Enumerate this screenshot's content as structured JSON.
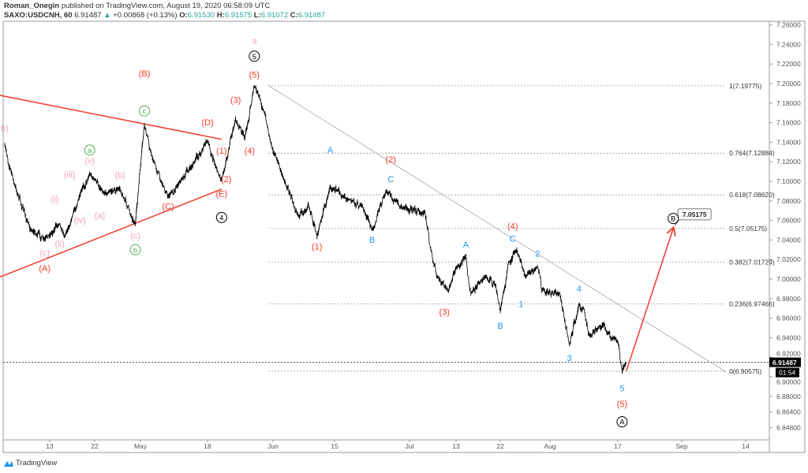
{
  "header": {
    "author": "Roman_Onegin",
    "published": "published on TradingView.com, August 19, 2020 06:58:09 UTC",
    "symbol": "SAXO:USDCNH, 60",
    "last": "6.91487",
    "change": "+0.00868 (+0.13%)",
    "o_label": "O:",
    "o": "6.91530",
    "h_label": "H:",
    "h": "6.91575",
    "l_label": "L:",
    "l": "6.91072",
    "c_label": "C:",
    "c": "6.91487"
  },
  "footer": {
    "brand": "TradingView"
  },
  "colors": {
    "price": "#000000",
    "trend": "#f23a2a",
    "pink": "#f4a3b8",
    "green": "#4caf50",
    "blue": "#2196f3",
    "red": "#f23a2a",
    "teal": "#26a69a",
    "grid": "#9598a1"
  },
  "chart_data": {
    "type": "line",
    "title": "",
    "xlabel": "",
    "ylabel": "",
    "ylim": [
      6.848,
      7.26
    ],
    "grid": false,
    "y_ticks": [
      "7.26000",
      "7.24000",
      "7.22000",
      "7.20000",
      "7.18000",
      "7.16000",
      "7.14000",
      "7.12000",
      "7.10000",
      "7.08000",
      "7.06000",
      "7.04000",
      "7.02000",
      "7.00000",
      "6.98000",
      "6.96000",
      "6.94000",
      "6.92000",
      "6.90000",
      "6.88000",
      "6.86400",
      "6.84800"
    ],
    "x_ticks": [
      {
        "date": "2020-04-13",
        "label": "13"
      },
      {
        "date": "2020-04-22",
        "label": "22"
      },
      {
        "date": "2020-05-01",
        "label": "May"
      },
      {
        "date": "2020-05-18",
        "label": "18"
      },
      {
        "date": "2020-06-01",
        "label": "Jun"
      },
      {
        "date": "2020-06-15",
        "label": "15"
      },
      {
        "date": "2020-07-01",
        "label": "Jul"
      },
      {
        "date": "2020-07-13",
        "label": "13"
      },
      {
        "date": "2020-07-22",
        "label": "22"
      },
      {
        "date": "2020-08-03",
        "label": "Aug"
      },
      {
        "date": "2020-08-17",
        "label": "17"
      },
      {
        "date": "2020-09-01",
        "label": "Sep"
      },
      {
        "date": "2020-09-14",
        "label": "14"
      }
    ],
    "series": [
      {
        "points": [
          [
            "2020-04-04",
            7.136
          ],
          [
            "2020-04-06",
            7.096
          ],
          [
            "2020-04-09",
            7.052
          ],
          [
            "2020-04-12",
            7.04
          ],
          [
            "2020-04-15",
            7.058
          ],
          [
            "2020-04-16",
            7.044
          ],
          [
            "2020-04-19",
            7.084
          ],
          [
            "2020-04-21",
            7.108
          ],
          [
            "2020-04-24",
            7.088
          ],
          [
            "2020-04-27",
            7.092
          ],
          [
            "2020-04-30",
            7.056
          ],
          [
            "2020-05-02",
            7.158
          ],
          [
            "2020-05-04",
            7.124
          ],
          [
            "2020-05-08",
            7.084
          ],
          [
            "2020-05-11",
            7.1
          ],
          [
            "2020-05-14",
            7.115
          ],
          [
            "2020-05-18",
            7.142
          ],
          [
            "2020-05-20",
            7.112
          ],
          [
            "2020-05-21",
            7.102
          ],
          [
            "2020-05-24",
            7.163
          ],
          [
            "2020-05-26",
            7.144
          ],
          [
            "2020-05-28",
            7.198
          ],
          [
            "2020-05-30",
            7.173
          ],
          [
            "2020-06-01",
            7.132
          ],
          [
            "2020-06-03",
            7.108
          ],
          [
            "2020-06-07",
            7.064
          ],
          [
            "2020-06-09",
            7.077
          ],
          [
            "2020-06-11",
            7.044
          ],
          [
            "2020-06-14",
            7.094
          ],
          [
            "2020-06-18",
            7.082
          ],
          [
            "2020-06-21",
            7.074
          ],
          [
            "2020-06-23",
            7.05
          ],
          [
            "2020-06-26",
            7.09
          ],
          [
            "2020-06-29",
            7.074
          ],
          [
            "2020-07-05",
            7.068
          ],
          [
            "2020-07-07",
            7.019
          ],
          [
            "2020-07-08",
            7.003
          ],
          [
            "2020-07-11",
            6.987
          ],
          [
            "2020-07-13",
            7.011
          ],
          [
            "2020-07-15",
            7.023
          ],
          [
            "2020-07-16",
            6.985
          ],
          [
            "2020-07-19",
            7.003
          ],
          [
            "2020-07-21",
            6.994
          ],
          [
            "2020-07-22",
            6.967
          ],
          [
            "2020-07-24",
            7.016
          ],
          [
            "2020-07-26",
            7.029
          ],
          [
            "2020-07-28",
            7.003
          ],
          [
            "2020-07-31",
            7.013
          ],
          [
            "2020-08-01",
            6.989
          ],
          [
            "2020-08-05",
            6.985
          ],
          [
            "2020-08-07",
            6.932
          ],
          [
            "2020-08-09",
            6.975
          ],
          [
            "2020-08-10",
            6.969
          ],
          [
            "2020-08-11",
            6.943
          ],
          [
            "2020-08-14",
            6.953
          ],
          [
            "2020-08-15",
            6.945
          ],
          [
            "2020-08-17",
            6.937
          ],
          [
            "2020-08-18",
            6.905
          ],
          [
            "2020-08-19",
            6.91487
          ]
        ]
      }
    ],
    "current_price": {
      "value": 6.91487,
      "label": "6.91487",
      "countdown": "01:54"
    },
    "trendlines": [
      {
        "color": "#f23a2a",
        "from": [
          "2020-04-03",
          7.188
        ],
        "to": [
          "2020-05-21",
          7.143
        ]
      },
      {
        "color": "#f23a2a",
        "from": [
          "2020-04-03",
          7.002
        ],
        "to": [
          "2020-05-21",
          7.092
        ]
      },
      {
        "color": "#9598a1",
        "from": [
          "2020-05-31",
          7.198
        ],
        "to": [
          "2020-09-10",
          6.905
        ]
      },
      {
        "color": "#f23a2a",
        "from": [
          "2020-08-19",
          6.906
        ],
        "to": [
          "2020-08-30",
          7.05175
        ],
        "arrow": true
      }
    ],
    "fib_levels": {
      "from": "2020-05-31",
      "to": "2020-09-10",
      "levels": [
        {
          "price": 7.19775,
          "label": "1(7.19775)"
        },
        {
          "price": 7.12884,
          "label": "0.764(7.12884)"
        },
        {
          "price": 7.0862,
          "label": "0.618(7.08620)"
        },
        {
          "price": 7.05175,
          "label": "0.5(7.05175)"
        },
        {
          "price": 7.01729,
          "label": "0.382(7.01729)"
        },
        {
          "price": 6.97466,
          "label": "0.236(6.97466)"
        },
        {
          "price": 6.90575,
          "label": "0(6.90575)"
        }
      ]
    },
    "target_callout": {
      "label": "7.05175"
    },
    "wave_labels": [
      {
        "text": "a",
        "color": "pink",
        "date": "2020-05-28",
        "price": 7.2435
      },
      {
        "text": "5",
        "color": "black",
        "circle": true,
        "date": "2020-05-28",
        "price": 7.228
      },
      {
        "text": "(5)",
        "color": "red",
        "date": "2020-05-28",
        "price": 7.209
      },
      {
        "text": "(3)",
        "color": "red",
        "date": "2020-05-24",
        "price": 7.183
      },
      {
        "text": "(4)",
        "color": "red",
        "date": "2020-05-27",
        "price": 7.131
      },
      {
        "text": "(1)",
        "color": "red",
        "date": "2020-05-21",
        "price": 7.131
      },
      {
        "text": "(2)",
        "color": "red",
        "date": "2020-05-22",
        "price": 7.102
      },
      {
        "text": "(E)",
        "color": "red",
        "date": "2020-05-21",
        "price": 7.087
      },
      {
        "text": "4",
        "color": "black",
        "circle": true,
        "date": "2020-05-21",
        "price": 7.063
      },
      {
        "text": "(D)",
        "color": "red",
        "date": "2020-05-18",
        "price": 7.16
      },
      {
        "text": "(B)",
        "color": "red",
        "date": "2020-05-02",
        "price": 7.21
      },
      {
        "text": "c",
        "color": "green",
        "circle": true,
        "date": "2020-05-02",
        "price": 7.172
      },
      {
        "text": "a",
        "color": "green",
        "circle": true,
        "date": "2020-04-21",
        "price": 7.132
      },
      {
        "text": "(v)",
        "color": "pink",
        "date": "2020-04-21",
        "price": 7.121
      },
      {
        "text": "(iii)",
        "color": "pink",
        "date": "2020-04-17",
        "price": 7.107
      },
      {
        "text": "(b)",
        "color": "pink",
        "date": "2020-04-27",
        "price": 7.106
      },
      {
        "text": "(i)",
        "color": "pink",
        "date": "2020-04-14",
        "price": 7.082
      },
      {
        "text": "(a)",
        "color": "pink",
        "date": "2020-04-23",
        "price": 7.065
      },
      {
        "text": "(iv)",
        "color": "pink",
        "date": "2020-04-19",
        "price": 7.06
      },
      {
        "text": "(ii)",
        "color": "pink",
        "date": "2020-04-15",
        "price": 7.036
      },
      {
        "text": "(c)",
        "color": "pink",
        "date": "2020-04-30",
        "price": 7.044
      },
      {
        "text": "b",
        "color": "green",
        "circle": true,
        "date": "2020-04-30",
        "price": 7.03
      },
      {
        "text": "(c)",
        "color": "pink",
        "date": "2020-04-12",
        "price": 7.027
      },
      {
        "text": "(A)",
        "color": "red",
        "date": "2020-04-12",
        "price": 7.011
      },
      {
        "text": "(C)",
        "color": "red",
        "date": "2020-05-08",
        "price": 7.074
      },
      {
        "text": "b)",
        "color": "pink",
        "date": "2020-04-04",
        "price": 7.154
      },
      {
        "text": "A",
        "color": "blue",
        "date": "2020-06-14",
        "price": 7.132
      },
      {
        "text": "(2)",
        "color": "red",
        "date": "2020-06-27",
        "price": 7.122
      },
      {
        "text": "C",
        "color": "blue",
        "date": "2020-06-27",
        "price": 7.102
      },
      {
        "text": "B",
        "color": "blue",
        "date": "2020-06-23",
        "price": 7.04
      },
      {
        "text": "(1)",
        "color": "red",
        "date": "2020-06-11",
        "price": 7.033
      },
      {
        "text": "A",
        "color": "blue",
        "date": "2020-07-15",
        "price": 7.035
      },
      {
        "text": "(3)",
        "color": "red",
        "date": "2020-07-10",
        "price": 6.966
      },
      {
        "text": "(4)",
        "color": "red",
        "date": "2020-07-25",
        "price": 7.054
      },
      {
        "text": "C",
        "color": "blue",
        "date": "2020-07-25",
        "price": 7.041
      },
      {
        "text": "2",
        "color": "blue",
        "date": "2020-07-31",
        "price": 7.026
      },
      {
        "text": "1",
        "color": "blue",
        "date": "2020-07-27",
        "price": 6.974
      },
      {
        "text": "B",
        "color": "blue",
        "date": "2020-07-22",
        "price": 6.952
      },
      {
        "text": "4",
        "color": "blue",
        "date": "2020-08-09",
        "price": 6.99
      },
      {
        "text": "3",
        "color": "blue",
        "date": "2020-08-07",
        "price": 6.919
      },
      {
        "text": "5",
        "color": "blue",
        "date": "2020-08-18",
        "price": 6.888
      },
      {
        "text": "(5)",
        "color": "red",
        "date": "2020-08-18",
        "price": 6.872
      },
      {
        "text": "A",
        "color": "black",
        "circle": true,
        "date": "2020-08-18",
        "price": 6.854
      },
      {
        "text": "B",
        "color": "black",
        "circle": true,
        "date": "2020-08-30",
        "price": 7.062
      }
    ]
  }
}
